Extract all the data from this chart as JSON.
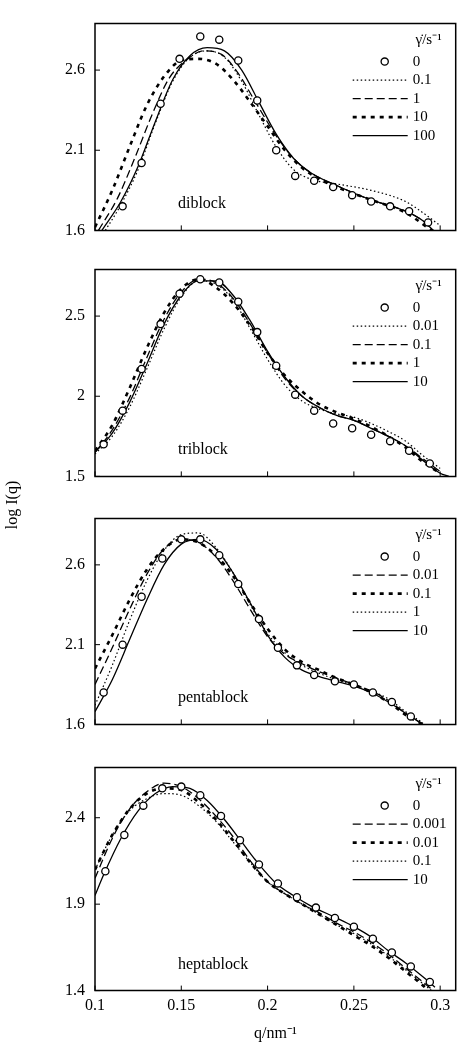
{
  "chart_data": [
    {
      "type": "line",
      "legend_title": "γ̇/s⁻¹",
      "legend": "top right",
      "annotations": [
        "diblock"
      ],
      "xlim": [
        0.1,
        0.309
      ],
      "xticks": [
        0.1,
        0.15,
        0.2,
        0.25,
        0.3
      ],
      "ylim": [
        1.6,
        2.89
      ],
      "yticks": [
        1.6,
        2.1,
        2.6
      ],
      "tick_labels": "y",
      "grid": false,
      "series": [
        {
          "name": "0",
          "type": "scatter",
          "marker": "circle",
          "color": "#000000",
          "x": [
            0.116,
            0.127,
            0.138,
            0.149,
            0.161,
            0.172,
            0.183,
            0.194,
            0.205,
            0.216,
            0.227,
            0.238,
            0.249,
            0.26,
            0.271,
            0.282,
            0.293
          ],
          "values": [
            1.75,
            2.02,
            2.39,
            2.67,
            2.81,
            2.79,
            2.66,
            2.41,
            2.1,
            1.94,
            1.91,
            1.87,
            1.82,
            1.78,
            1.75,
            1.72,
            1.65
          ]
        },
        {
          "name": "0.1",
          "line_style": "dotted",
          "marker": "none",
          "color": "#000000",
          "x": [
            0.106,
            0.115,
            0.125,
            0.135,
            0.145,
            0.155,
            0.165,
            0.175,
            0.185,
            0.195,
            0.205,
            0.215,
            0.225,
            0.24,
            0.26,
            0.28,
            0.29,
            0.3
          ],
          "values": [
            1.6,
            1.76,
            1.98,
            2.27,
            2.53,
            2.68,
            2.72,
            2.68,
            2.53,
            2.32,
            2.12,
            1.98,
            1.92,
            1.89,
            1.85,
            1.78,
            1.71,
            1.63
          ]
        },
        {
          "name": "1",
          "line_style": "dashed",
          "marker": "none",
          "color": "#000000",
          "x": [
            0.102,
            0.113,
            0.123,
            0.133,
            0.143,
            0.155,
            0.163,
            0.173,
            0.183,
            0.193,
            0.205,
            0.215,
            0.225,
            0.24,
            0.26,
            0.28,
            0.29,
            0.296
          ],
          "values": [
            1.6,
            1.8,
            2.05,
            2.32,
            2.55,
            2.68,
            2.72,
            2.7,
            2.58,
            2.4,
            2.19,
            2.05,
            1.96,
            1.88,
            1.79,
            1.72,
            1.66,
            1.6
          ]
        },
        {
          "name": "10",
          "line_style": "dashed",
          "marker": "none",
          "color": "#000000",
          "x": [
            0.1,
            0.11,
            0.12,
            0.13,
            0.14,
            0.15,
            0.16,
            0.17,
            0.18,
            0.19,
            0.2,
            0.21,
            0.22,
            0.23,
            0.24,
            0.26,
            0.28,
            0.295
          ],
          "values": [
            1.62,
            1.85,
            2.12,
            2.38,
            2.56,
            2.66,
            2.67,
            2.64,
            2.54,
            2.4,
            2.25,
            2.1,
            1.99,
            1.92,
            1.87,
            1.79,
            1.71,
            1.6
          ]
        },
        {
          "name": "100",
          "line_style": "solid",
          "marker": "none",
          "color": "#000000",
          "x": [
            0.104,
            0.115,
            0.125,
            0.135,
            0.145,
            0.155,
            0.165,
            0.175,
            0.185,
            0.195,
            0.205,
            0.215,
            0.225,
            0.24,
            0.26,
            0.28,
            0.29,
            0.296
          ],
          "values": [
            1.6,
            1.78,
            2.0,
            2.28,
            2.54,
            2.69,
            2.74,
            2.72,
            2.6,
            2.4,
            2.2,
            2.05,
            1.96,
            1.88,
            1.79,
            1.72,
            1.66,
            1.6
          ]
        }
      ]
    },
    {
      "type": "line",
      "legend_title": "γ̇/s⁻¹",
      "legend": "top right",
      "annotations": [
        "triblock"
      ],
      "ylabel": "log I(q)",
      "xlim": [
        0.1,
        0.309
      ],
      "xticks": [
        0.1,
        0.15,
        0.2,
        0.25,
        0.3
      ],
      "ylim": [
        1.5,
        2.79
      ],
      "yticks": [
        1.5,
        2,
        2.5
      ],
      "tick_labels": "y",
      "grid": false,
      "series": [
        {
          "name": "0",
          "type": "scatter",
          "marker": "circle",
          "color": "#000000",
          "x": [
            0.105,
            0.116,
            0.127,
            0.138,
            0.149,
            0.161,
            0.172,
            0.183,
            0.194,
            0.205,
            0.216,
            0.227,
            0.238,
            0.249,
            0.26,
            0.271,
            0.282,
            0.294
          ],
          "values": [
            1.7,
            1.91,
            2.17,
            2.45,
            2.64,
            2.73,
            2.71,
            2.59,
            2.4,
            2.19,
            2.01,
            1.91,
            1.83,
            1.8,
            1.76,
            1.72,
            1.66,
            1.58
          ]
        },
        {
          "name": "0.01",
          "line_style": "dotted",
          "marker": "none",
          "color": "#000000",
          "x": [
            0.1,
            0.11,
            0.12,
            0.13,
            0.14,
            0.15,
            0.16,
            0.17,
            0.18,
            0.19,
            0.2,
            0.21,
            0.22,
            0.23,
            0.24,
            0.25,
            0.26,
            0.27,
            0.28,
            0.29,
            0.3
          ],
          "values": [
            1.64,
            1.75,
            1.93,
            2.17,
            2.42,
            2.62,
            2.72,
            2.7,
            2.6,
            2.42,
            2.23,
            2.07,
            1.97,
            1.92,
            1.89,
            1.87,
            1.83,
            1.78,
            1.72,
            1.63,
            1.55
          ]
        },
        {
          "name": "0.1",
          "line_style": "dashed",
          "marker": "none",
          "color": "#000000",
          "x": [
            0.1,
            0.11,
            0.12,
            0.13,
            0.14,
            0.15,
            0.16,
            0.17,
            0.18,
            0.19,
            0.2,
            0.21,
            0.22,
            0.23,
            0.24,
            0.25,
            0.26,
            0.27,
            0.28,
            0.29,
            0.3
          ],
          "values": [
            1.65,
            1.79,
            1.99,
            2.24,
            2.48,
            2.65,
            2.73,
            2.71,
            2.61,
            2.45,
            2.27,
            2.11,
            2.0,
            1.93,
            1.88,
            1.85,
            1.8,
            1.75,
            1.69,
            1.61,
            1.53
          ]
        },
        {
          "name": "1",
          "line_style": "dashed",
          "marker": "none",
          "color": "#000000",
          "x": [
            0.1,
            0.11,
            0.12,
            0.13,
            0.14,
            0.15,
            0.16,
            0.17,
            0.18,
            0.19,
            0.2,
            0.21,
            0.22,
            0.23,
            0.24,
            0.25,
            0.26,
            0.27,
            0.28,
            0.29,
            0.3
          ],
          "values": [
            1.66,
            1.82,
            2.05,
            2.3,
            2.52,
            2.67,
            2.73,
            2.68,
            2.58,
            2.44,
            2.27,
            2.13,
            2.03,
            1.95,
            1.9,
            1.86,
            1.81,
            1.75,
            1.68,
            1.59,
            1.52
          ]
        },
        {
          "name": "10",
          "line_style": "solid",
          "marker": "none",
          "color": "#000000",
          "x": [
            0.1,
            0.11,
            0.12,
            0.13,
            0.14,
            0.15,
            0.16,
            0.17,
            0.18,
            0.19,
            0.2,
            0.21,
            0.22,
            0.23,
            0.24,
            0.25,
            0.26,
            0.27,
            0.28,
            0.29,
            0.3,
            0.305
          ],
          "values": [
            1.65,
            1.77,
            1.96,
            2.2,
            2.45,
            2.63,
            2.72,
            2.72,
            2.63,
            2.47,
            2.28,
            2.12,
            2.0,
            1.93,
            1.88,
            1.85,
            1.8,
            1.75,
            1.69,
            1.6,
            1.52,
            1.5
          ]
        }
      ]
    },
    {
      "type": "line",
      "legend_title": "γ̇/s⁻¹",
      "legend": "top right",
      "annotations": [
        "pentablock"
      ],
      "xlim": [
        0.1,
        0.309
      ],
      "xticks": [
        0.1,
        0.15,
        0.2,
        0.25,
        0.3
      ],
      "ylim": [
        1.6,
        2.89
      ],
      "yticks": [
        1.6,
        2.1,
        2.6
      ],
      "tick_labels": "y",
      "grid": false,
      "series": [
        {
          "name": "0",
          "type": "scatter",
          "marker": "circle",
          "color": "#000000",
          "x": [
            0.105,
            0.116,
            0.127,
            0.139,
            0.15,
            0.161,
            0.172,
            0.183,
            0.195,
            0.206,
            0.217,
            0.227,
            0.239,
            0.25,
            0.261,
            0.272,
            0.283
          ],
          "values": [
            1.8,
            2.1,
            2.4,
            2.64,
            2.76,
            2.76,
            2.66,
            2.48,
            2.26,
            2.08,
            1.97,
            1.91,
            1.87,
            1.85,
            1.8,
            1.74,
            1.65
          ]
        },
        {
          "name": "0.01",
          "line_style": "dashed",
          "marker": "none",
          "color": "#000000",
          "x": [
            0.1,
            0.11,
            0.12,
            0.13,
            0.14,
            0.15,
            0.16,
            0.17,
            0.18,
            0.19,
            0.2,
            0.21,
            0.22,
            0.23,
            0.24,
            0.25,
            0.26,
            0.27,
            0.28,
            0.29
          ],
          "values": [
            1.85,
            2.08,
            2.32,
            2.54,
            2.7,
            2.76,
            2.74,
            2.65,
            2.5,
            2.32,
            2.15,
            2.04,
            1.98,
            1.93,
            1.89,
            1.85,
            1.81,
            1.75,
            1.67,
            1.6
          ]
        },
        {
          "name": "0.1",
          "line_style": "dashed",
          "marker": "none",
          "color": "#000000",
          "x": [
            0.1,
            0.11,
            0.12,
            0.13,
            0.14,
            0.15,
            0.16,
            0.17,
            0.18,
            0.19,
            0.2,
            0.21,
            0.22,
            0.23,
            0.24,
            0.25,
            0.26,
            0.27,
            0.28,
            0.29
          ],
          "values": [
            1.95,
            2.16,
            2.38,
            2.57,
            2.7,
            2.76,
            2.74,
            2.66,
            2.53,
            2.36,
            2.2,
            2.07,
            1.99,
            1.94,
            1.89,
            1.85,
            1.8,
            1.74,
            1.66,
            1.6
          ]
        },
        {
          "name": "1",
          "line_style": "dotted",
          "marker": "none",
          "color": "#000000",
          "x": [
            0.1,
            0.11,
            0.12,
            0.13,
            0.14,
            0.15,
            0.16,
            0.17,
            0.18,
            0.19,
            0.2,
            0.21,
            0.22,
            0.23,
            0.24,
            0.25,
            0.26,
            0.27,
            0.28,
            0.29
          ],
          "values": [
            1.72,
            1.97,
            2.25,
            2.5,
            2.69,
            2.79,
            2.8,
            2.71,
            2.55,
            2.35,
            2.17,
            2.05,
            1.97,
            1.92,
            1.88,
            1.85,
            1.81,
            1.76,
            1.68,
            1.61
          ]
        },
        {
          "name": "10",
          "line_style": "solid",
          "marker": "none",
          "color": "#000000",
          "x": [
            0.1,
            0.11,
            0.12,
            0.13,
            0.14,
            0.15,
            0.16,
            0.17,
            0.18,
            0.19,
            0.2,
            0.21,
            0.22,
            0.23,
            0.24,
            0.25,
            0.26,
            0.27,
            0.28,
            0.29
          ],
          "values": [
            1.68,
            1.88,
            2.13,
            2.38,
            2.6,
            2.73,
            2.76,
            2.7,
            2.55,
            2.36,
            2.16,
            2.02,
            1.94,
            1.9,
            1.87,
            1.84,
            1.8,
            1.74,
            1.67,
            1.6
          ]
        }
      ]
    },
    {
      "type": "line",
      "legend_title": "γ̇/s⁻¹",
      "legend": "top right",
      "annotations": [
        "heptablock"
      ],
      "xlabel": "q/nm⁻¹",
      "xlim": [
        0.1,
        0.309
      ],
      "xticks": [
        0.1,
        0.15,
        0.2,
        0.25,
        0.3
      ],
      "ylim": [
        1.4,
        2.69
      ],
      "yticks": [
        1.4,
        1.9,
        2.4
      ],
      "grid": false,
      "series": [
        {
          "name": "0",
          "type": "scatter",
          "marker": "circle",
          "color": "#000000",
          "x": [
            0.106,
            0.117,
            0.128,
            0.139,
            0.15,
            0.161,
            0.173,
            0.184,
            0.195,
            0.206,
            0.217,
            0.228,
            0.239,
            0.25,
            0.261,
            0.272,
            0.283,
            0.294
          ],
          "values": [
            2.09,
            2.3,
            2.47,
            2.57,
            2.58,
            2.53,
            2.41,
            2.27,
            2.13,
            2.02,
            1.94,
            1.88,
            1.82,
            1.77,
            1.7,
            1.62,
            1.54,
            1.45
          ]
        },
        {
          "name": "0.001",
          "line_style": "dashed",
          "marker": "none",
          "color": "#000000",
          "x": [
            0.1,
            0.11,
            0.12,
            0.13,
            0.14,
            0.15,
            0.16,
            0.17,
            0.18,
            0.19,
            0.2,
            0.21,
            0.22,
            0.23,
            0.24,
            0.25,
            0.26,
            0.27,
            0.28,
            0.29,
            0.296
          ],
          "values": [
            2.05,
            2.28,
            2.45,
            2.55,
            2.6,
            2.58,
            2.51,
            2.41,
            2.29,
            2.15,
            2.03,
            1.96,
            1.9,
            1.85,
            1.79,
            1.74,
            1.68,
            1.61,
            1.53,
            1.45,
            1.4
          ]
        },
        {
          "name": "0.01",
          "line_style": "dashed",
          "marker": "none",
          "color": "#000000",
          "x": [
            0.1,
            0.11,
            0.12,
            0.13,
            0.14,
            0.15,
            0.16,
            0.17,
            0.18,
            0.19,
            0.2,
            0.21,
            0.22,
            0.23,
            0.24,
            0.25,
            0.26,
            0.27,
            0.28,
            0.29,
            0.293
          ],
          "values": [
            2.1,
            2.3,
            2.45,
            2.54,
            2.57,
            2.56,
            2.49,
            2.39,
            2.27,
            2.14,
            2.03,
            1.96,
            1.9,
            1.84,
            1.78,
            1.72,
            1.66,
            1.59,
            1.51,
            1.43,
            1.4
          ]
        },
        {
          "name": "0.1",
          "line_style": "dotted",
          "marker": "none",
          "color": "#000000",
          "x": [
            0.1,
            0.11,
            0.12,
            0.13,
            0.14,
            0.15,
            0.16,
            0.17,
            0.18,
            0.19,
            0.2,
            0.21,
            0.22,
            0.23,
            0.24,
            0.25,
            0.26,
            0.27,
            0.28,
            0.29,
            0.295
          ],
          "values": [
            2.1,
            2.3,
            2.44,
            2.51,
            2.54,
            2.53,
            2.47,
            2.38,
            2.26,
            2.14,
            2.03,
            1.96,
            1.9,
            1.84,
            1.78,
            1.73,
            1.67,
            1.6,
            1.52,
            1.44,
            1.4
          ]
        },
        {
          "name": "10",
          "line_style": "solid",
          "marker": "none",
          "color": "#000000",
          "x": [
            0.1,
            0.105,
            0.115,
            0.125,
            0.135,
            0.145,
            0.155,
            0.165,
            0.175,
            0.185,
            0.195,
            0.205,
            0.215,
            0.225,
            0.24,
            0.25,
            0.26,
            0.27,
            0.28,
            0.29,
            0.297
          ],
          "values": [
            1.95,
            2.07,
            2.28,
            2.44,
            2.54,
            2.58,
            2.57,
            2.5,
            2.39,
            2.26,
            2.13,
            2.02,
            1.95,
            1.89,
            1.82,
            1.77,
            1.71,
            1.63,
            1.56,
            1.48,
            1.42
          ]
        }
      ]
    }
  ]
}
